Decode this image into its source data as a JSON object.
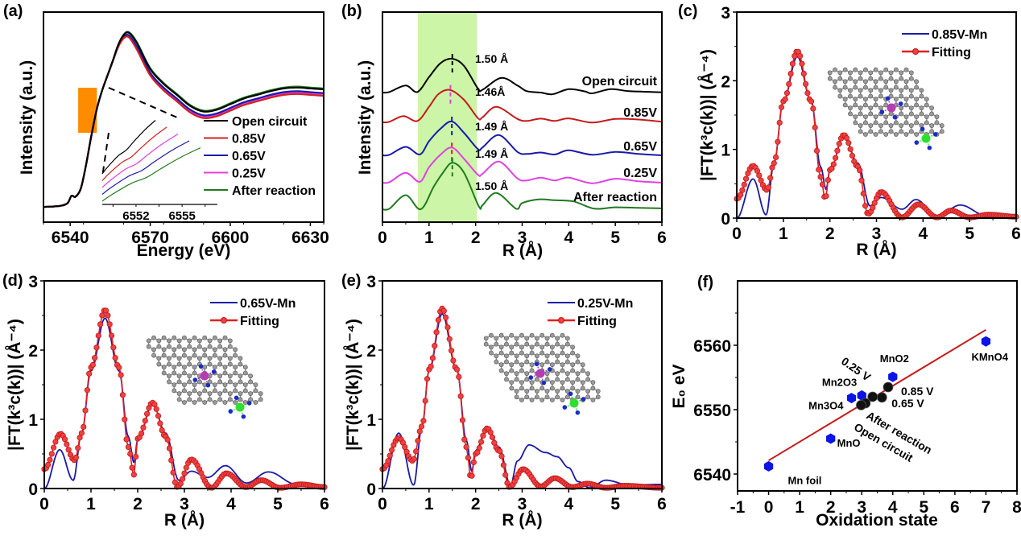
{
  "figure": {
    "panels": [
      "(a)",
      "(b)",
      "(c)",
      "(d)",
      "(e)",
      "(f)"
    ]
  },
  "chart_data": [
    {
      "id": "a",
      "type": "line",
      "panel_label": "(a)",
      "title": "",
      "xlabel": "Energy (eV)",
      "ylabel": "Intensity (a.u.)",
      "xlim": [
        6530,
        6635
      ],
      "x_ticks": [
        6540,
        6570,
        6600,
        6630
      ],
      "y_ticks": [],
      "legend_position": "bottom-right",
      "series": [
        {
          "name": "Open circuit",
          "color": "#000000",
          "offset": 0.015
        },
        {
          "name": "0.85V",
          "color": "#d42020",
          "offset": -0.02
        },
        {
          "name": "0.65V",
          "color": "#1a1aa8",
          "offset": -0.005
        },
        {
          "name": "0.25V",
          "color": "#e040e0",
          "offset": -0.012
        },
        {
          "name": "After reaction",
          "color": "#1f7a1f",
          "offset": 0.02
        }
      ],
      "profile": {
        "x": [
          6530,
          6536,
          6539,
          6540.5,
          6542,
          6544,
          6546,
          6548,
          6550,
          6552,
          6554,
          6556,
          6558,
          6560,
          6562,
          6565,
          6570,
          6575,
          6580,
          6585,
          6590,
          6595,
          6600,
          6605,
          6610,
          6615,
          6620,
          6625,
          6630,
          6635
        ],
        "y": [
          0.03,
          0.035,
          0.05,
          0.09,
          0.085,
          0.13,
          0.26,
          0.42,
          0.56,
          0.66,
          0.74,
          0.82,
          0.9,
          0.95,
          0.96,
          0.9,
          0.76,
          0.68,
          0.62,
          0.56,
          0.53,
          0.54,
          0.57,
          0.6,
          0.62,
          0.64,
          0.655,
          0.66,
          0.655,
          0.65
        ]
      },
      "highlight_box": {
        "x_range": [
          6543,
          6550
        ],
        "color": "#ff8c00"
      },
      "inset": {
        "x_ticks": [
          6552,
          6555
        ],
        "xlim": [
          6549.8,
          6557.3
        ],
        "series_order": [
          "Open circuit",
          "0.85V",
          "0.25V",
          "0.65V",
          "After reaction"
        ]
      }
    },
    {
      "id": "b",
      "type": "line",
      "panel_label": "(b)",
      "xlabel": "R (Å)",
      "ylabel": "Intensity (a.u.)",
      "xlim": [
        0,
        6
      ],
      "x_ticks": [
        0,
        1,
        2,
        3,
        4,
        5,
        6
      ],
      "y_ticks": [],
      "shaded_region": {
        "x_range": [
          0.76,
          2.03
        ],
        "color": "#ccf5a8"
      },
      "series": [
        {
          "name": "Open circuit",
          "color": "#000000",
          "peak": 1.5,
          "peak_label": "1.50 Å",
          "baseline": 4.1,
          "x": [
            0,
            0.15,
            0.5,
            0.75,
            1.0,
            1.25,
            1.5,
            1.75,
            2.05,
            2.15,
            2.55,
            2.9,
            3.1,
            3.4,
            3.65,
            4.0,
            4.35,
            4.5,
            4.9,
            5.3,
            6.0
          ],
          "y": [
            0,
            0.02,
            0.25,
            0.02,
            0.55,
            1.05,
            1.2,
            0.95,
            0.14,
            0.1,
            0.52,
            0.25,
            0.05,
            0.0,
            -0.06,
            0.12,
            0.04,
            -0.03,
            0.12,
            0.05,
            0.01
          ]
        },
        {
          "name": "0.85V",
          "color": "#c41a1a",
          "peak": 1.46,
          "peak_label": "1.46Å",
          "baseline": 3.0,
          "x": [
            0,
            0.15,
            0.45,
            0.75,
            1.0,
            1.2,
            1.45,
            1.75,
            2.05,
            2.15,
            2.45,
            2.9,
            3.1,
            3.4,
            3.7,
            4.0,
            4.5,
            5.0,
            5.5,
            6.0
          ],
          "y": [
            0,
            0.02,
            0.22,
            0.05,
            0.55,
            1.0,
            1.15,
            0.8,
            0.15,
            0.18,
            0.55,
            0.12,
            0.05,
            0.13,
            0.05,
            0.14,
            -0.01,
            0.12,
            0.1,
            0.02
          ]
        },
        {
          "name": "0.65V",
          "color": "#1a1aa8",
          "peak": 1.49,
          "peak_label": "1.49 Å",
          "baseline": 1.75,
          "x": [
            0,
            0.15,
            0.5,
            0.8,
            1.0,
            1.25,
            1.49,
            1.75,
            2.05,
            2.15,
            2.5,
            2.9,
            3.1,
            3.4,
            3.7,
            4.0,
            4.5,
            5.0,
            5.5,
            6.0
          ],
          "y": [
            0,
            0.02,
            0.3,
            0.03,
            0.5,
            0.95,
            1.2,
            0.8,
            0.22,
            0.28,
            0.72,
            0.12,
            0.05,
            0.1,
            0.03,
            0.18,
            0.02,
            0.12,
            0.05,
            0.0
          ]
        },
        {
          "name": "0.25V",
          "color": "#e040e0",
          "peak": 1.49,
          "peak_label": "1.49 Å",
          "baseline": 0.75,
          "x": [
            0,
            0.15,
            0.5,
            0.8,
            1.0,
            1.25,
            1.49,
            1.75,
            2.05,
            2.15,
            2.5,
            2.9,
            3.1,
            3.4,
            3.7,
            4.0,
            4.5,
            5.0,
            5.5,
            6.0
          ],
          "y": [
            0,
            0.02,
            0.35,
            0.03,
            0.55,
            1.0,
            1.25,
            0.85,
            0.28,
            0.32,
            0.75,
            0.15,
            0.08,
            0.18,
            0.08,
            0.18,
            -0.02,
            0.14,
            0.05,
            0.0
          ]
        },
        {
          "name": "After reaction",
          "color": "#1f7a1f",
          "peak": 1.5,
          "peak_label": "1.50 Å",
          "baseline": -0.2,
          "x": [
            0,
            0.15,
            0.5,
            0.82,
            1.1,
            1.3,
            1.5,
            1.75,
            2.07,
            2.15,
            2.45,
            2.87,
            3.0,
            3.35,
            3.7,
            4.1,
            4.55,
            5.0,
            5.5,
            6.0
          ],
          "y": [
            0,
            0.02,
            0.5,
            0.0,
            0.8,
            1.3,
            1.65,
            1.3,
            0.1,
            0.15,
            0.58,
            0.02,
            0.22,
            0.35,
            0.32,
            0.28,
            0.02,
            0.07,
            0.05,
            0.03
          ]
        }
      ]
    },
    {
      "id": "c",
      "type": "line",
      "panel_label": "(c)",
      "xlabel": "R (Å)",
      "ylabel": "|FT(k³c(k))| (Å⁻⁴)",
      "xlim": [
        0,
        6
      ],
      "ylim": [
        0,
        3
      ],
      "x_ticks": [
        0,
        1,
        2,
        3,
        4,
        5,
        6
      ],
      "y_ticks": [
        0,
        1,
        2,
        3
      ],
      "legend_position": "top-right",
      "series": [
        {
          "name": "0.85V-Mn",
          "color": "#1a1aa8",
          "style": "line",
          "x": [
            0,
            0.35,
            0.63,
            0.8,
            1.0,
            1.3,
            1.6,
            1.8,
            1.92,
            2.0,
            2.3,
            2.6,
            2.86,
            3.1,
            3.55,
            3.85,
            4.3,
            4.8,
            5.35,
            6.0
          ],
          "y": [
            0.0,
            0.57,
            0.05,
            0.8,
            1.7,
            2.35,
            1.7,
            0.75,
            0.42,
            0.7,
            1.2,
            0.8,
            0.18,
            0.3,
            0.13,
            0.27,
            0.02,
            0.19,
            0.04,
            0.02
          ]
        },
        {
          "name": "Fitting",
          "color": "#e02020",
          "style": "line+markers",
          "x": [
            0,
            0.35,
            0.65,
            0.8,
            1.0,
            1.3,
            1.6,
            1.8,
            1.9,
            2.0,
            2.3,
            2.6,
            2.82,
            3.1,
            3.55,
            3.9,
            4.3,
            4.6,
            5.0,
            5.4,
            6.0
          ],
          "y": [
            0.28,
            0.76,
            0.41,
            0.8,
            1.7,
            2.43,
            1.7,
            0.6,
            0.28,
            0.7,
            1.21,
            0.75,
            0.06,
            0.38,
            0.01,
            0.2,
            0.01,
            0.11,
            0.01,
            0.05,
            0.02
          ]
        }
      ],
      "inset": "graphene lattice with Mn (purple) and green metal atoms, each coordinated by 4 N atoms (blue)"
    },
    {
      "id": "d",
      "type": "line",
      "panel_label": "(d)",
      "xlabel": "R (Å)",
      "ylabel": "|FT(k³c(k))| (Å⁻⁴)",
      "xlim": [
        0,
        6
      ],
      "ylim": [
        0,
        3
      ],
      "x_ticks": [
        0,
        1,
        2,
        3,
        4,
        5,
        6
      ],
      "y_ticks": [
        0,
        1,
        2,
        3
      ],
      "legend_position": "top-right",
      "series": [
        {
          "name": "0.65V-Mn",
          "color": "#1a1aa8",
          "style": "line",
          "x": [
            0,
            0.33,
            0.62,
            0.8,
            1.0,
            1.3,
            1.6,
            1.8,
            1.92,
            2.0,
            2.32,
            2.6,
            2.88,
            3.15,
            3.5,
            3.88,
            4.33,
            4.8,
            5.4,
            6.0
          ],
          "y": [
            0.0,
            0.56,
            0.12,
            0.8,
            1.7,
            2.46,
            1.7,
            0.75,
            0.38,
            0.7,
            1.22,
            0.8,
            0.12,
            0.25,
            0.16,
            0.33,
            0.08,
            0.24,
            0.06,
            0.05
          ]
        },
        {
          "name": "Fitting",
          "color": "#e02020",
          "style": "line+markers",
          "x": [
            0,
            0.35,
            0.65,
            0.8,
            1.0,
            1.3,
            1.6,
            1.8,
            1.92,
            2.0,
            2.32,
            2.6,
            2.85,
            3.15,
            3.58,
            3.9,
            4.32,
            4.65,
            5.05,
            5.5,
            6.0
          ],
          "y": [
            0.28,
            0.79,
            0.41,
            0.8,
            1.75,
            2.58,
            1.75,
            0.6,
            0.2,
            0.72,
            1.24,
            0.75,
            0.02,
            0.42,
            0.01,
            0.22,
            0.02,
            0.12,
            0.01,
            0.06,
            0.02
          ]
        }
      ]
    },
    {
      "id": "e",
      "type": "line",
      "panel_label": "(e)",
      "xlabel": "R (Å)",
      "ylabel": "|FT(k³c(k))| (Å⁻⁴)",
      "xlim": [
        0,
        6
      ],
      "ylim": [
        0,
        3
      ],
      "x_ticks": [
        0,
        1,
        2,
        3,
        4,
        5,
        6
      ],
      "y_ticks": [
        0,
        1,
        2,
        3
      ],
      "legend_position": "top-right",
      "series": [
        {
          "name": "0.25V-Mn",
          "color": "#1a1aa8",
          "style": "line",
          "x": [
            0,
            0.35,
            0.67,
            0.85,
            1.0,
            1.28,
            1.6,
            1.8,
            1.92,
            2.0,
            2.25,
            2.5,
            2.75,
            2.9,
            3.15,
            3.5,
            3.75,
            4.0,
            4.2,
            4.45,
            4.8,
            5.3,
            6.0
          ],
          "y": [
            0.0,
            0.8,
            0.05,
            0.9,
            1.7,
            2.52,
            1.7,
            0.7,
            0.25,
            0.55,
            0.88,
            0.6,
            0.05,
            0.4,
            0.63,
            0.52,
            0.46,
            0.3,
            0.1,
            0.01,
            0.12,
            0.05,
            0.06
          ]
        },
        {
          "name": "Fitting",
          "color": "#e02020",
          "style": "line+markers",
          "x": [
            0,
            0.35,
            0.65,
            0.85,
            1.0,
            1.28,
            1.6,
            1.8,
            1.9,
            2.0,
            2.25,
            2.5,
            2.73,
            3.02,
            3.4,
            3.7,
            4.08,
            4.4,
            4.8,
            5.2,
            6.0
          ],
          "y": [
            0.28,
            0.73,
            0.4,
            0.9,
            1.72,
            2.6,
            1.72,
            0.6,
            0.15,
            0.5,
            0.87,
            0.55,
            0.02,
            0.28,
            0.03,
            0.15,
            0.02,
            0.07,
            0.01,
            0.04,
            0.01
          ]
        }
      ]
    },
    {
      "id": "f",
      "type": "scatter",
      "panel_label": "(f)",
      "xlabel": "Oxidation state",
      "ylabel": "E₀ eV",
      "xlim": [
        -1,
        8
      ],
      "ylim": [
        6537.4,
        6570
      ],
      "x_ticks": [
        -1,
        0,
        1,
        2,
        3,
        4,
        5,
        6,
        7,
        8
      ],
      "y_ticks": [
        6540,
        6550,
        6560
      ],
      "references": [
        {
          "name": "Mn foil",
          "x": 0,
          "y": 6541.2
        },
        {
          "name": "MnO",
          "x": 2,
          "y": 6545.5
        },
        {
          "name": "Mn3O4",
          "x": 2.67,
          "y": 6551.8
        },
        {
          "name": "Mn2O3",
          "x": 3,
          "y": 6552.2
        },
        {
          "name": "MnO2",
          "x": 4,
          "y": 6555.1
        },
        {
          "name": "KMnO4",
          "x": 7,
          "y": 6560.6
        }
      ],
      "samples": [
        {
          "name": "0.85 V",
          "x": 3.85,
          "y": 6553.5
        },
        {
          "name": "0.25 V",
          "x": 3.35,
          "y": 6552.0
        },
        {
          "name": "0.65 V",
          "x": 3.65,
          "y": 6551.9
        },
        {
          "name": "After reaction",
          "x": 3.12,
          "y": 6551.0
        },
        {
          "name": "Open circuit",
          "x": 2.98,
          "y": 6550.7
        }
      ],
      "fit_line": {
        "x": [
          0,
          7
        ],
        "y": [
          6542.1,
          6562.4
        ],
        "color": "#c41a1a"
      },
      "reference_color": "#0a14e6",
      "sample_color": "#111111"
    }
  ]
}
